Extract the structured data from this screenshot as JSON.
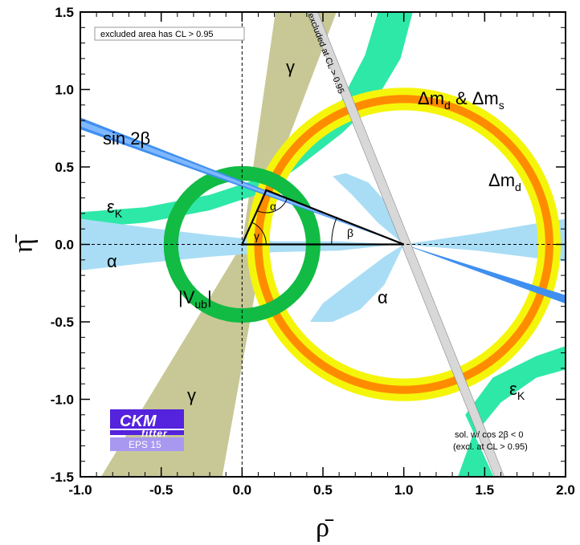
{
  "chart_data": {
    "type": "scatter",
    "xlabel": "ρ̄",
    "ylabel": "η̄",
    "xlim": [
      -1.0,
      2.0
    ],
    "ylim": [
      -1.5,
      1.5
    ],
    "x_ticks": [
      "-1.0",
      "-0.5",
      "0.0",
      "0.5",
      "1.0",
      "1.5",
      "2.0"
    ],
    "y_ticks": [
      "1.5",
      "1.0",
      "0.5",
      "0.0",
      "-0.5",
      "-1.0",
      "-1.5"
    ],
    "grid": false,
    "apex": {
      "rho": 0.15,
      "eta": 0.35
    },
    "triangle_vertices": [
      [
        0,
        0
      ],
      [
        1,
        0
      ],
      [
        0.15,
        0.35
      ]
    ],
    "angle_labels": {
      "alpha": "α",
      "beta": "β",
      "gamma": "γ"
    },
    "constraints": {
      "vub": {
        "label": "|V",
        "sub": "ub",
        "close": "|",
        "center": [
          0,
          0
        ],
        "radius": 0.44,
        "width": 0.09,
        "color": "#11bb44"
      },
      "dmd": {
        "label": "Δm",
        "sub": "d",
        "center": [
          1,
          0
        ],
        "radius": 0.9,
        "width": 0.14,
        "color": "#f5f50a"
      },
      "dmd_dms": {
        "label": "Δm",
        "sub1": "d",
        "amp": " & Δm",
        "sub2": "s",
        "center": [
          1,
          0
        ],
        "radius": 0.9,
        "width": 0.05,
        "color": "#ff8c00"
      },
      "sin2beta": {
        "label": "sin 2β",
        "color": "#3f8ff0"
      },
      "epsK": {
        "label": "ε",
        "sub": "K",
        "color": "#2ee8a8"
      },
      "alpha": {
        "label": "α",
        "color": "#a8ddf5"
      },
      "gamma": {
        "label": "γ",
        "color": "#c8c896"
      }
    },
    "annotations": {
      "excluded_area": "excluded area has CL > 0.95",
      "excluded_at": "excluded at CL > 0.95",
      "sol_line1": "sol. w/ cos 2β < 0",
      "sol_line2": "(excl. at CL > 0.95)"
    }
  },
  "logo": {
    "title": "CKM",
    "subtitle": "fitter",
    "tag": "EPS 15",
    "color": "#5522dd"
  }
}
